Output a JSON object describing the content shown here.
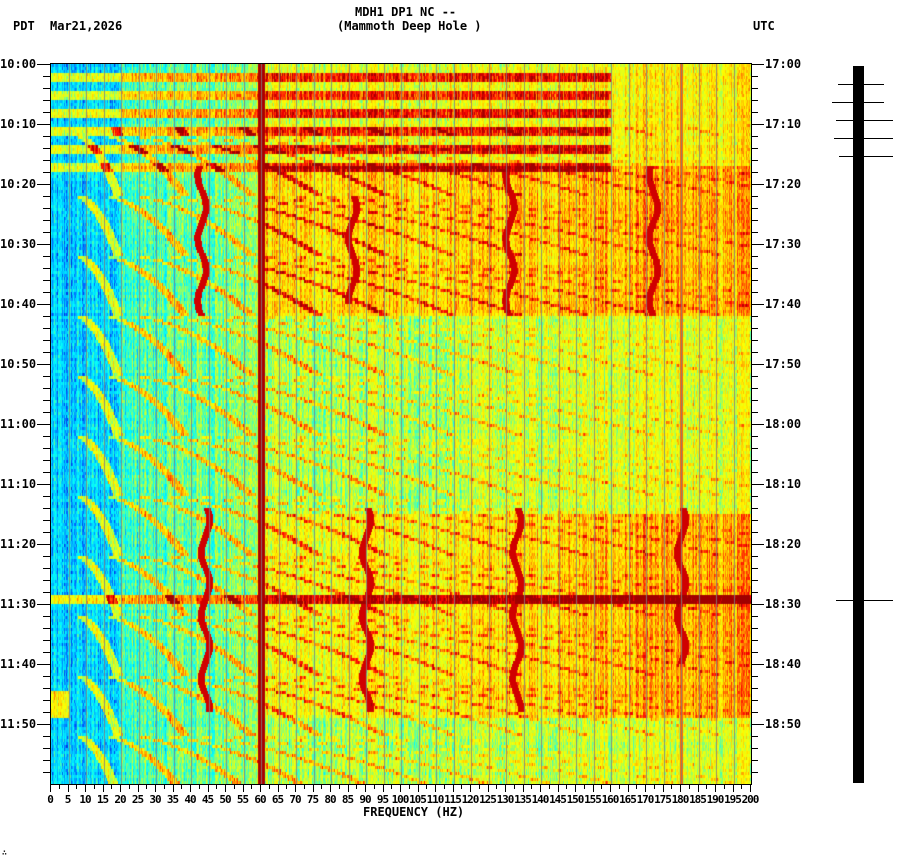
{
  "header": {
    "station_line": "MDH1 DP1 NC --",
    "station_name": "(Mammoth Deep Hole )",
    "left_tz": "PDT",
    "date": "Mar21,2026",
    "right_tz": "UTC"
  },
  "footer_mark": "∴",
  "chart_data": {
    "type": "heatmap",
    "title": "MDH1 DP1 NC -- (Mammoth Deep Hole )",
    "subtitle": "Mar21,2026",
    "xlabel": "FREQUENCY (HZ)",
    "ylabel_left": "PDT",
    "ylabel_right": "UTC",
    "xlim": [
      0,
      200
    ],
    "x_ticks": [
      0,
      5,
      10,
      15,
      20,
      25,
      30,
      35,
      40,
      45,
      50,
      55,
      60,
      65,
      70,
      75,
      80,
      85,
      90,
      95,
      100,
      105,
      110,
      115,
      120,
      125,
      130,
      135,
      140,
      145,
      150,
      155,
      160,
      165,
      170,
      175,
      180,
      185,
      190,
      195,
      200
    ],
    "x_tick_labels": [
      "0",
      "5",
      "10",
      "15",
      "20",
      "25",
      "30",
      "35",
      "40",
      "45",
      "50",
      "55",
      "60",
      "65",
      "70",
      "75",
      "80",
      "85",
      "90",
      "95",
      "100",
      "105",
      "110",
      "115",
      "120",
      "125",
      "130",
      "135",
      "140",
      "145",
      "150",
      "155",
      "160",
      "165",
      "170",
      "175",
      "180",
      "185",
      "190",
      "195",
      "200"
    ],
    "y_ticks_left": [
      "10:00",
      "10:10",
      "10:20",
      "10:30",
      "10:40",
      "10:50",
      "11:00",
      "11:10",
      "11:20",
      "11:30",
      "11:40",
      "11:50"
    ],
    "y_ticks_right": [
      "17:00",
      "17:10",
      "17:20",
      "17:30",
      "17:40",
      "17:50",
      "18:00",
      "18:10",
      "18:20",
      "18:30",
      "18:40",
      "18:50"
    ],
    "time_span_minutes": 120,
    "minor_tick_interval_minutes": 2,
    "colormap": [
      "#0000c8",
      "#0064ff",
      "#00c8ff",
      "#00ffff",
      "#64ff96",
      "#c8ff32",
      "#ffff00",
      "#ffc800",
      "#ff6400",
      "#ff0000",
      "#a00000"
    ],
    "features": {
      "persistent_line_hz": 60,
      "secondary_line_hz": 180,
      "high_energy_rows_minutes": [
        2,
        5,
        8,
        11,
        14,
        17
      ],
      "high_energy_band_minutes": [
        [
          17,
          42
        ],
        [
          75,
          125
        ],
        [
          88,
          110
        ]
      ],
      "event_minutes": [
        89,
        104,
        110
      ],
      "gliding_tones": "repeating upward-curving harmonic glides, period approx 10 min"
    },
    "grid": true,
    "legend": null
  },
  "seismogram": {
    "spike_minutes": [
      3,
      6,
      9,
      12,
      15,
      89
    ]
  }
}
